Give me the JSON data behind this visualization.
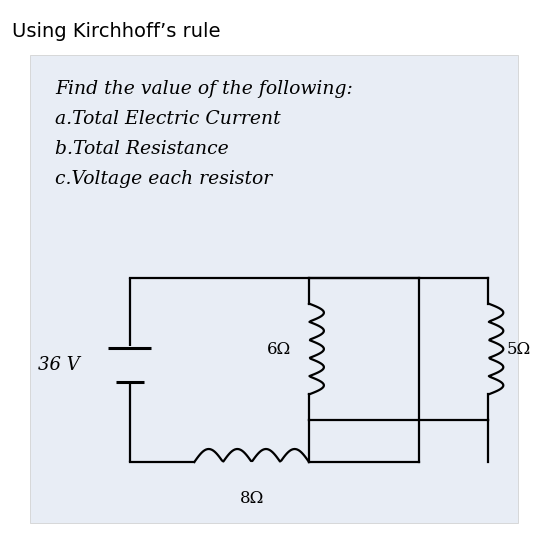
{
  "title": "Using Kirchhoff’s rule",
  "text_lines": [
    "Find the value of the following:",
    "a.Total Electric Current",
    "b.Total Resistance",
    "c.Voltage each resistor"
  ],
  "voltage_label": "36 V",
  "r6_label": "6Ω",
  "r5_label": "5Ω",
  "r8_label": "8Ω",
  "bg_color": "#e8edf5",
  "line_color": "#000000",
  "title_fontsize": 14,
  "text_fontsize": 13.5
}
